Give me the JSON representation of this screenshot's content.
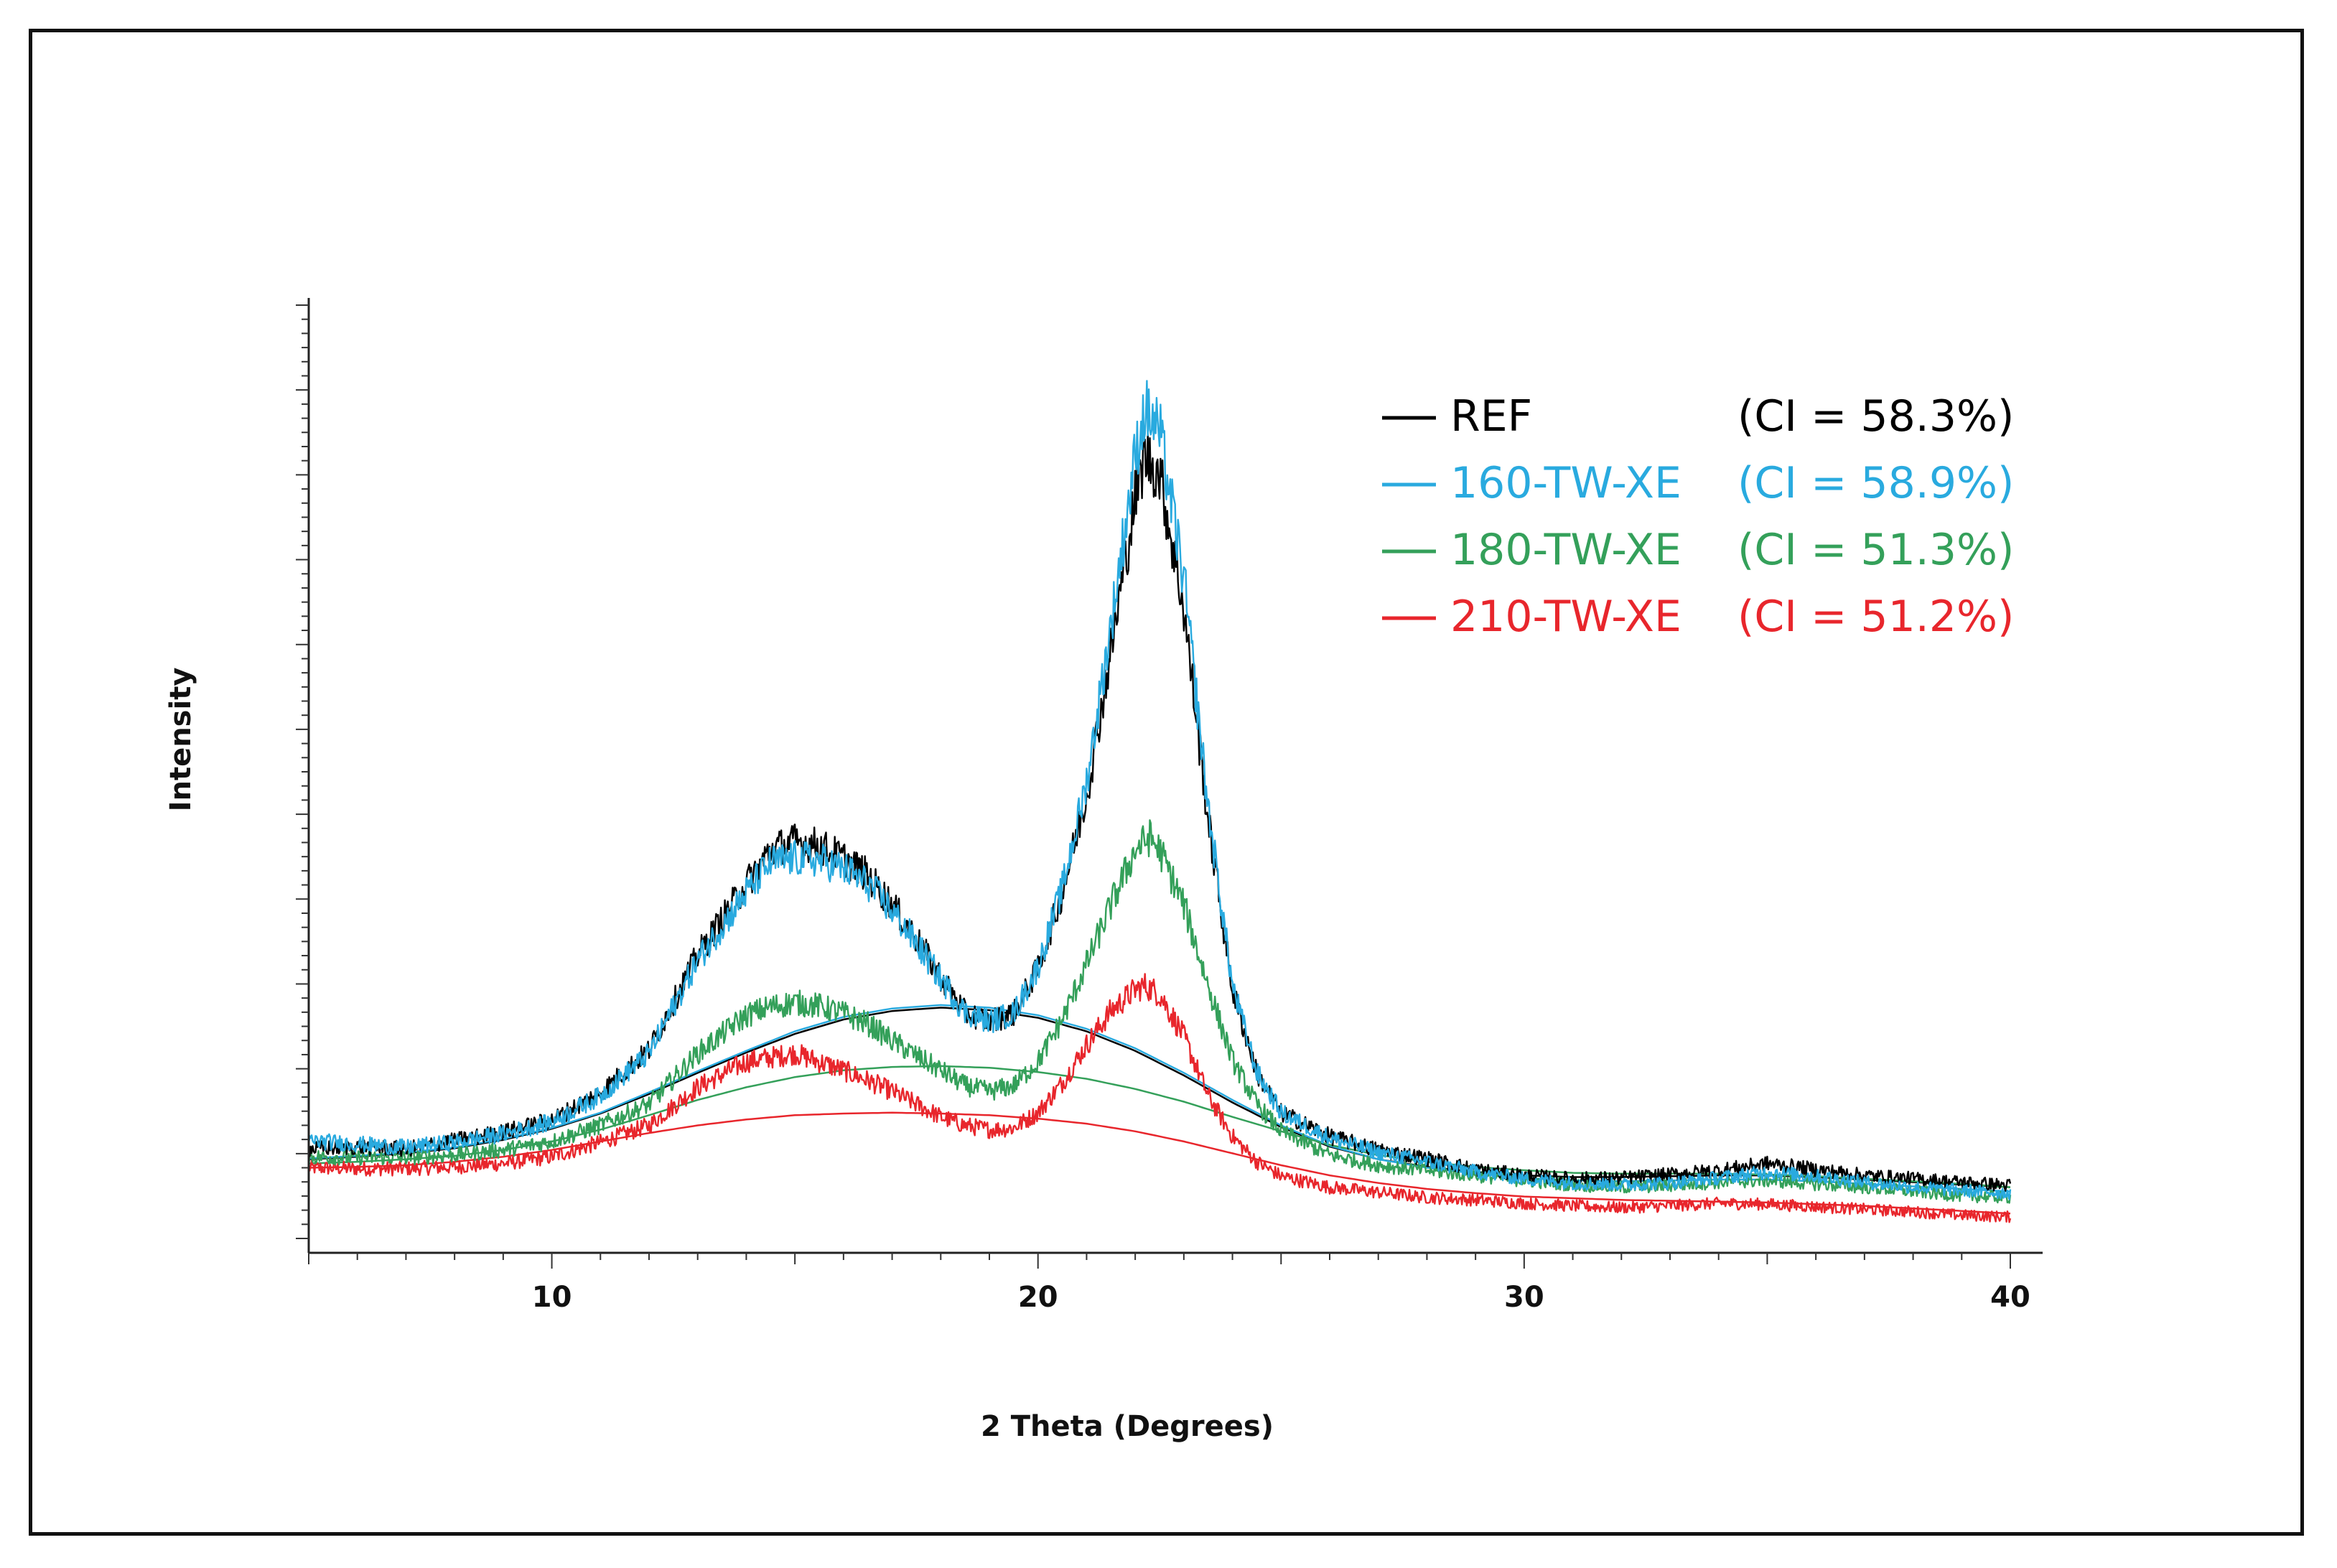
{
  "chart_data": {
    "type": "line",
    "title": "",
    "xlabel": "2 Theta (Degrees)",
    "ylabel": "Intensity",
    "xlim": [
      5,
      40
    ],
    "ylim": [
      0,
      1000
    ],
    "xticks": [
      10,
      20,
      30,
      40
    ],
    "xtick_labels": [
      "10",
      "20",
      "30",
      "40"
    ],
    "y_tick_labels": [],
    "grid": false,
    "legend_position": "top-right",
    "series": [
      {
        "name": "REF",
        "ci_label": "(CI = 58.3%)",
        "color": "#000000",
        "x": [
          5,
          6,
          7,
          8,
          9,
          10,
          11,
          12,
          13,
          14,
          14.5,
          15,
          15.5,
          16,
          16.5,
          17,
          17.5,
          18,
          18.5,
          19,
          19.5,
          20,
          20.5,
          21,
          21.5,
          22,
          22.2,
          22.5,
          23,
          23.5,
          24,
          24.5,
          25,
          26,
          27,
          28,
          29,
          30,
          31,
          32,
          33,
          34,
          35,
          36,
          37,
          38,
          39,
          40
        ],
        "y": [
          97,
          100,
          97,
          107,
          117,
          131,
          164,
          214,
          326,
          410,
          450,
          460,
          455,
          440,
          420,
          385,
          345,
          300,
          258,
          248,
          257,
          310,
          400,
          515,
          685,
          865,
          915,
          895,
          735,
          485,
          285,
          187,
          140,
          112,
          96,
          86,
          73,
          66,
          62,
          63,
          67,
          72,
          80,
          73,
          66,
          62,
          58,
          54
        ]
      },
      {
        "name": "160-TW-XE",
        "ci_label": "(CI = 58.9%)",
        "color": "#29aadf",
        "x": [
          5,
          6,
          7,
          8,
          9,
          10,
          11,
          12,
          13,
          14,
          14.5,
          15,
          15.5,
          16,
          16.5,
          17,
          17.5,
          18,
          18.5,
          19,
          19.5,
          20,
          20.5,
          21,
          21.5,
          22,
          22.2,
          22.5,
          23,
          23.5,
          24,
          24.5,
          25,
          26,
          27,
          28,
          29,
          30,
          31,
          32,
          33,
          34,
          35,
          36,
          37,
          38,
          39,
          40
        ],
        "y": [
          107,
          103,
          99,
          105,
          115,
          129,
          160,
          210,
          320,
          400,
          435,
          440,
          438,
          428,
          410,
          378,
          340,
          298,
          258,
          248,
          257,
          312,
          405,
          530,
          715,
          915,
          970,
          945,
          770,
          500,
          290,
          188,
          140,
          110,
          93,
          82,
          70,
          62,
          57,
          55,
          57,
          63,
          70,
          65,
          58,
          52,
          48,
          45
        ]
      },
      {
        "name": "180-TW-XE",
        "ci_label": "(CI = 51.3%)",
        "color": "#34a05a",
        "x": [
          5,
          6,
          7,
          8,
          9,
          10,
          11,
          12,
          13,
          14,
          14.5,
          15,
          15.5,
          16,
          16.5,
          17,
          17.5,
          18,
          18.5,
          19,
          19.5,
          20,
          20.5,
          21,
          21.5,
          22,
          22.3,
          22.5,
          23,
          23.5,
          24,
          24.5,
          25,
          26,
          27,
          28,
          29,
          30,
          31,
          32,
          33,
          34,
          35,
          36,
          37,
          38,
          39,
          40
        ],
        "y": [
          88,
          87,
          87,
          90,
          96,
          106,
          125,
          150,
          210,
          255,
          265,
          270,
          266,
          257,
          245,
          225,
          207,
          190,
          172,
          165,
          172,
          200,
          250,
          315,
          385,
          450,
          465,
          450,
          385,
          290,
          202,
          150,
          118,
          90,
          78,
          72,
          66,
          60,
          55,
          52,
          54,
          58,
          60,
          56,
          52,
          47,
          42,
          40
        ]
      },
      {
        "name": "210-TW-XE",
        "ci_label": "(CI = 51.2%)",
        "color": "#e8262c",
        "x": [
          5,
          6,
          7,
          8,
          9,
          10,
          11,
          12,
          13,
          14,
          14.5,
          15,
          15.5,
          16,
          16.5,
          17,
          17.5,
          18,
          18.5,
          19,
          19.5,
          20,
          20.5,
          21,
          21.5,
          22,
          22.2,
          22.5,
          23,
          23.5,
          24,
          24.5,
          25,
          26,
          27,
          28,
          29,
          30,
          31,
          32,
          33,
          34,
          35,
          36,
          37,
          38,
          39,
          40
        ],
        "y": [
          75,
          74,
          74,
          76,
          80,
          88,
          105,
          125,
          170,
          200,
          205,
          210,
          200,
          190,
          178,
          165,
          150,
          135,
          125,
          120,
          122,
          140,
          175,
          220,
          260,
          285,
          290,
          280,
          230,
          160,
          112,
          82,
          65,
          52,
          46,
          40,
          37,
          33,
          30,
          28,
          30,
          33,
          32,
          29,
          26,
          23,
          19,
          17
        ]
      }
    ],
    "amorphous_fits": [
      {
        "name": "REF",
        "color": "#000000",
        "x": [
          5,
          6,
          7,
          8,
          9,
          10,
          11,
          12,
          13,
          14,
          15,
          16,
          17,
          18,
          19,
          20,
          21,
          22,
          23,
          24,
          25,
          26,
          27,
          28,
          29,
          30,
          31,
          32,
          33,
          34,
          35,
          36,
          37,
          38,
          39,
          40
        ],
        "y": [
          85,
          88,
          92,
          98,
          108,
          121,
          139,
          162,
          187,
          211,
          233,
          250,
          260,
          264,
          261,
          252,
          236,
          213,
          184,
          152,
          123,
          100,
          85,
          76,
          70,
          66,
          64,
          64,
          65,
          66,
          66,
          64,
          61,
          58,
          55,
          52
        ]
      },
      {
        "name": "160-TW-XE",
        "color": "#29aadf",
        "x": [
          5,
          6,
          7,
          8,
          9,
          10,
          11,
          12,
          13,
          14,
          15,
          16,
          17,
          18,
          19,
          20,
          21,
          22,
          23,
          24,
          25,
          26,
          27,
          28,
          29,
          30,
          31,
          32,
          33,
          34,
          35,
          36,
          37,
          38,
          39,
          40
        ],
        "y": [
          86,
          89,
          93,
          99,
          109,
          122,
          140,
          164,
          189,
          213,
          236,
          253,
          263,
          267,
          264,
          255,
          239,
          216,
          187,
          155,
          125,
          101,
          85,
          75,
          68,
          63,
          60,
          59,
          60,
          61,
          61,
          59,
          56,
          53,
          50,
          47
        ]
      },
      {
        "name": "180-TW-XE",
        "color": "#34a05a",
        "x": [
          5,
          6,
          7,
          8,
          9,
          10,
          11,
          12,
          13,
          14,
          15,
          16,
          17,
          18,
          19,
          20,
          21,
          22,
          23,
          24,
          25,
          26,
          27,
          28,
          29,
          30,
          31,
          32,
          33,
          34,
          35,
          36,
          37,
          38,
          39,
          40
        ],
        "y": [
          80,
          82,
          85,
          89,
          96,
          106,
          120,
          137,
          155,
          170,
          182,
          190,
          194,
          195,
          193,
          188,
          180,
          168,
          153,
          135,
          118,
          102,
          90,
          82,
          76,
          72,
          69,
          68,
          68,
          68,
          67,
          65,
          62,
          59,
          56,
          52
        ]
      },
      {
        "name": "210-TW-XE",
        "color": "#e8262c",
        "x": [
          5,
          6,
          7,
          8,
          9,
          10,
          11,
          12,
          13,
          14,
          15,
          16,
          17,
          18,
          19,
          20,
          21,
          22,
          23,
          24,
          25,
          26,
          27,
          28,
          29,
          30,
          31,
          32,
          33,
          34,
          35,
          36,
          37,
          38,
          39,
          40
        ],
        "y": [
          75,
          76,
          78,
          82,
          88,
          96,
          106,
          116,
          125,
          132,
          137,
          139,
          140,
          139,
          137,
          133,
          127,
          118,
          106,
          92,
          78,
          66,
          57,
          50,
          45,
          41,
          39,
          37,
          36,
          35,
          34,
          32,
          30,
          27,
          24,
          21
        ]
      }
    ]
  }
}
